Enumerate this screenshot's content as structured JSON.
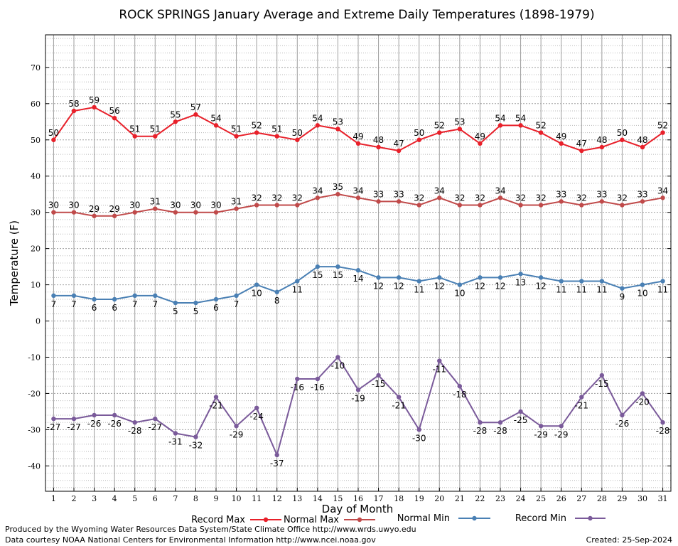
{
  "chart_data": {
    "type": "line",
    "title": "ROCK SPRINGS January Average and Extreme Daily Temperatures (1898-1979)",
    "xlabel": "Day of Month",
    "ylabel": "Temperature (F)",
    "ylim": [
      -47,
      79
    ],
    "xlim": [
      0.6,
      31.4
    ],
    "yticks": [
      -40,
      -30,
      -20,
      -10,
      0,
      10,
      20,
      30,
      40,
      50,
      60,
      70
    ],
    "grid": true,
    "legend_position": "bottom",
    "x": [
      1,
      2,
      3,
      4,
      5,
      6,
      7,
      8,
      9,
      10,
      11,
      12,
      13,
      14,
      15,
      16,
      17,
      18,
      19,
      20,
      21,
      22,
      23,
      24,
      25,
      26,
      27,
      28,
      29,
      30,
      31
    ],
    "series": [
      {
        "name": "Record Max",
        "color": "#e8202a",
        "values": [
          50,
          58,
          59,
          56,
          51,
          51,
          55,
          57,
          54,
          51,
          52,
          51,
          50,
          54,
          53,
          49,
          48,
          47,
          50,
          52,
          53,
          49,
          54,
          54,
          52,
          49,
          47,
          48,
          50,
          48,
          52
        ]
      },
      {
        "name": "Normal Max",
        "color": "#c04a4a",
        "values": [
          30,
          30,
          29,
          29,
          30,
          31,
          30,
          30,
          30,
          31,
          32,
          32,
          32,
          34,
          35,
          34,
          33,
          33,
          32,
          34,
          32,
          32,
          34,
          32,
          32,
          33,
          32,
          33,
          32,
          33,
          34
        ]
      },
      {
        "name": "Normal Min",
        "color": "#4a80b4",
        "values": [
          7,
          7,
          6,
          6,
          7,
          7,
          5,
          5,
          6,
          7,
          10,
          8,
          11,
          15,
          15,
          14,
          12,
          12,
          11,
          12,
          10,
          12,
          12,
          13,
          12,
          11,
          11,
          11,
          9,
          10,
          11
        ]
      },
      {
        "name": "Record Min",
        "color": "#7a5a9a",
        "values": [
          -27,
          -27,
          -26,
          -26,
          -28,
          -27,
          -31,
          -32,
          -21,
          -29,
          -24,
          -37,
          -16,
          -16,
          -10,
          -19,
          -15,
          -21,
          -30,
          -11,
          -18,
          -28,
          -28,
          -25,
          -29,
          -29,
          -21,
          -15,
          -26,
          -20,
          -28
        ]
      }
    ]
  },
  "footer": {
    "produced_by": "Produced by the Wyoming Water Resources Data System/State Climate Office http://www.wrds.uwyo.edu",
    "courtesy": "Data courtesy NOAA National Centers for Environmental Information http://www.ncei.noaa.gov",
    "created": "Created:  25-Sep-2024"
  }
}
